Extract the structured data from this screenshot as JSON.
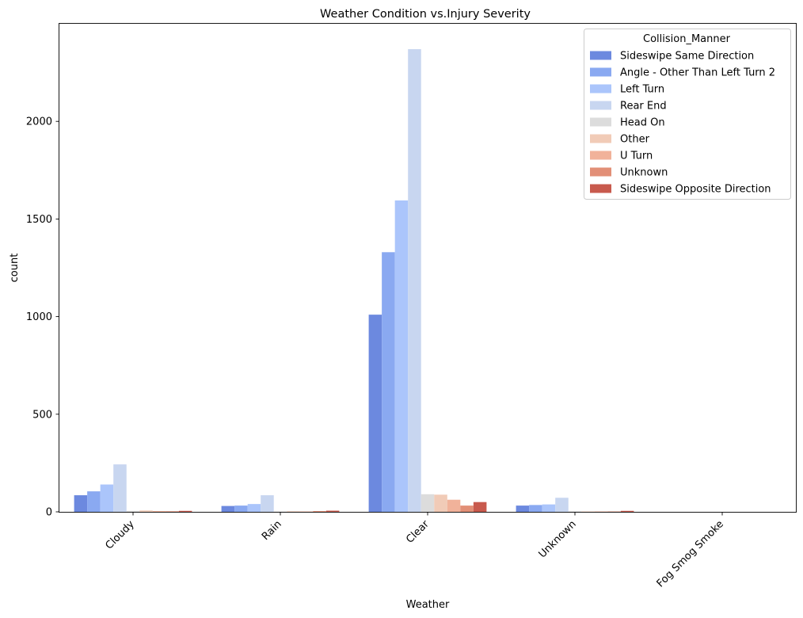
{
  "chart_data": {
    "type": "bar",
    "title": "Weather Condition vs.Injury Severity",
    "xlabel": "Weather",
    "ylabel": "count",
    "ylim": [
      0,
      2500
    ],
    "yticks": [
      0,
      500,
      1000,
      1500,
      2000
    ],
    "grid": false,
    "legend": {
      "title": "Collision_Manner",
      "placement": "top-right"
    },
    "categories": [
      "Cloudy",
      "Rain",
      "Clear",
      "Unknown",
      "Fog Smog Smoke"
    ],
    "series": [
      {
        "name": "Sideswipe Same Direction",
        "color": "#6c89df",
        "values": [
          85,
          30,
          1010,
          32,
          0
        ]
      },
      {
        "name": "Angle - Other Than Left Turn 2",
        "color": "#8aa9f1",
        "values": [
          105,
          32,
          1330,
          35,
          0
        ]
      },
      {
        "name": "Left Turn",
        "color": "#abc5fb",
        "values": [
          140,
          40,
          1595,
          38,
          0
        ]
      },
      {
        "name": "Rear End",
        "color": "#c8d6f0",
        "values": [
          243,
          85,
          2370,
          72,
          0
        ]
      },
      {
        "name": "Head On",
        "color": "#dcdcdc",
        "values": [
          5,
          2,
          90,
          3,
          0
        ]
      },
      {
        "name": "Other",
        "color": "#f1cbb7",
        "values": [
          7,
          3,
          88,
          2,
          0
        ]
      },
      {
        "name": "U Turn",
        "color": "#f1b29a",
        "values": [
          4,
          2,
          62,
          2,
          0
        ]
      },
      {
        "name": "Unknown",
        "color": "#e28f77",
        "values": [
          3,
          4,
          32,
          2,
          0
        ]
      },
      {
        "name": "Sideswipe Opposite Direction",
        "color": "#c85a4d",
        "values": [
          5,
          6,
          50,
          5,
          0
        ]
      }
    ]
  }
}
